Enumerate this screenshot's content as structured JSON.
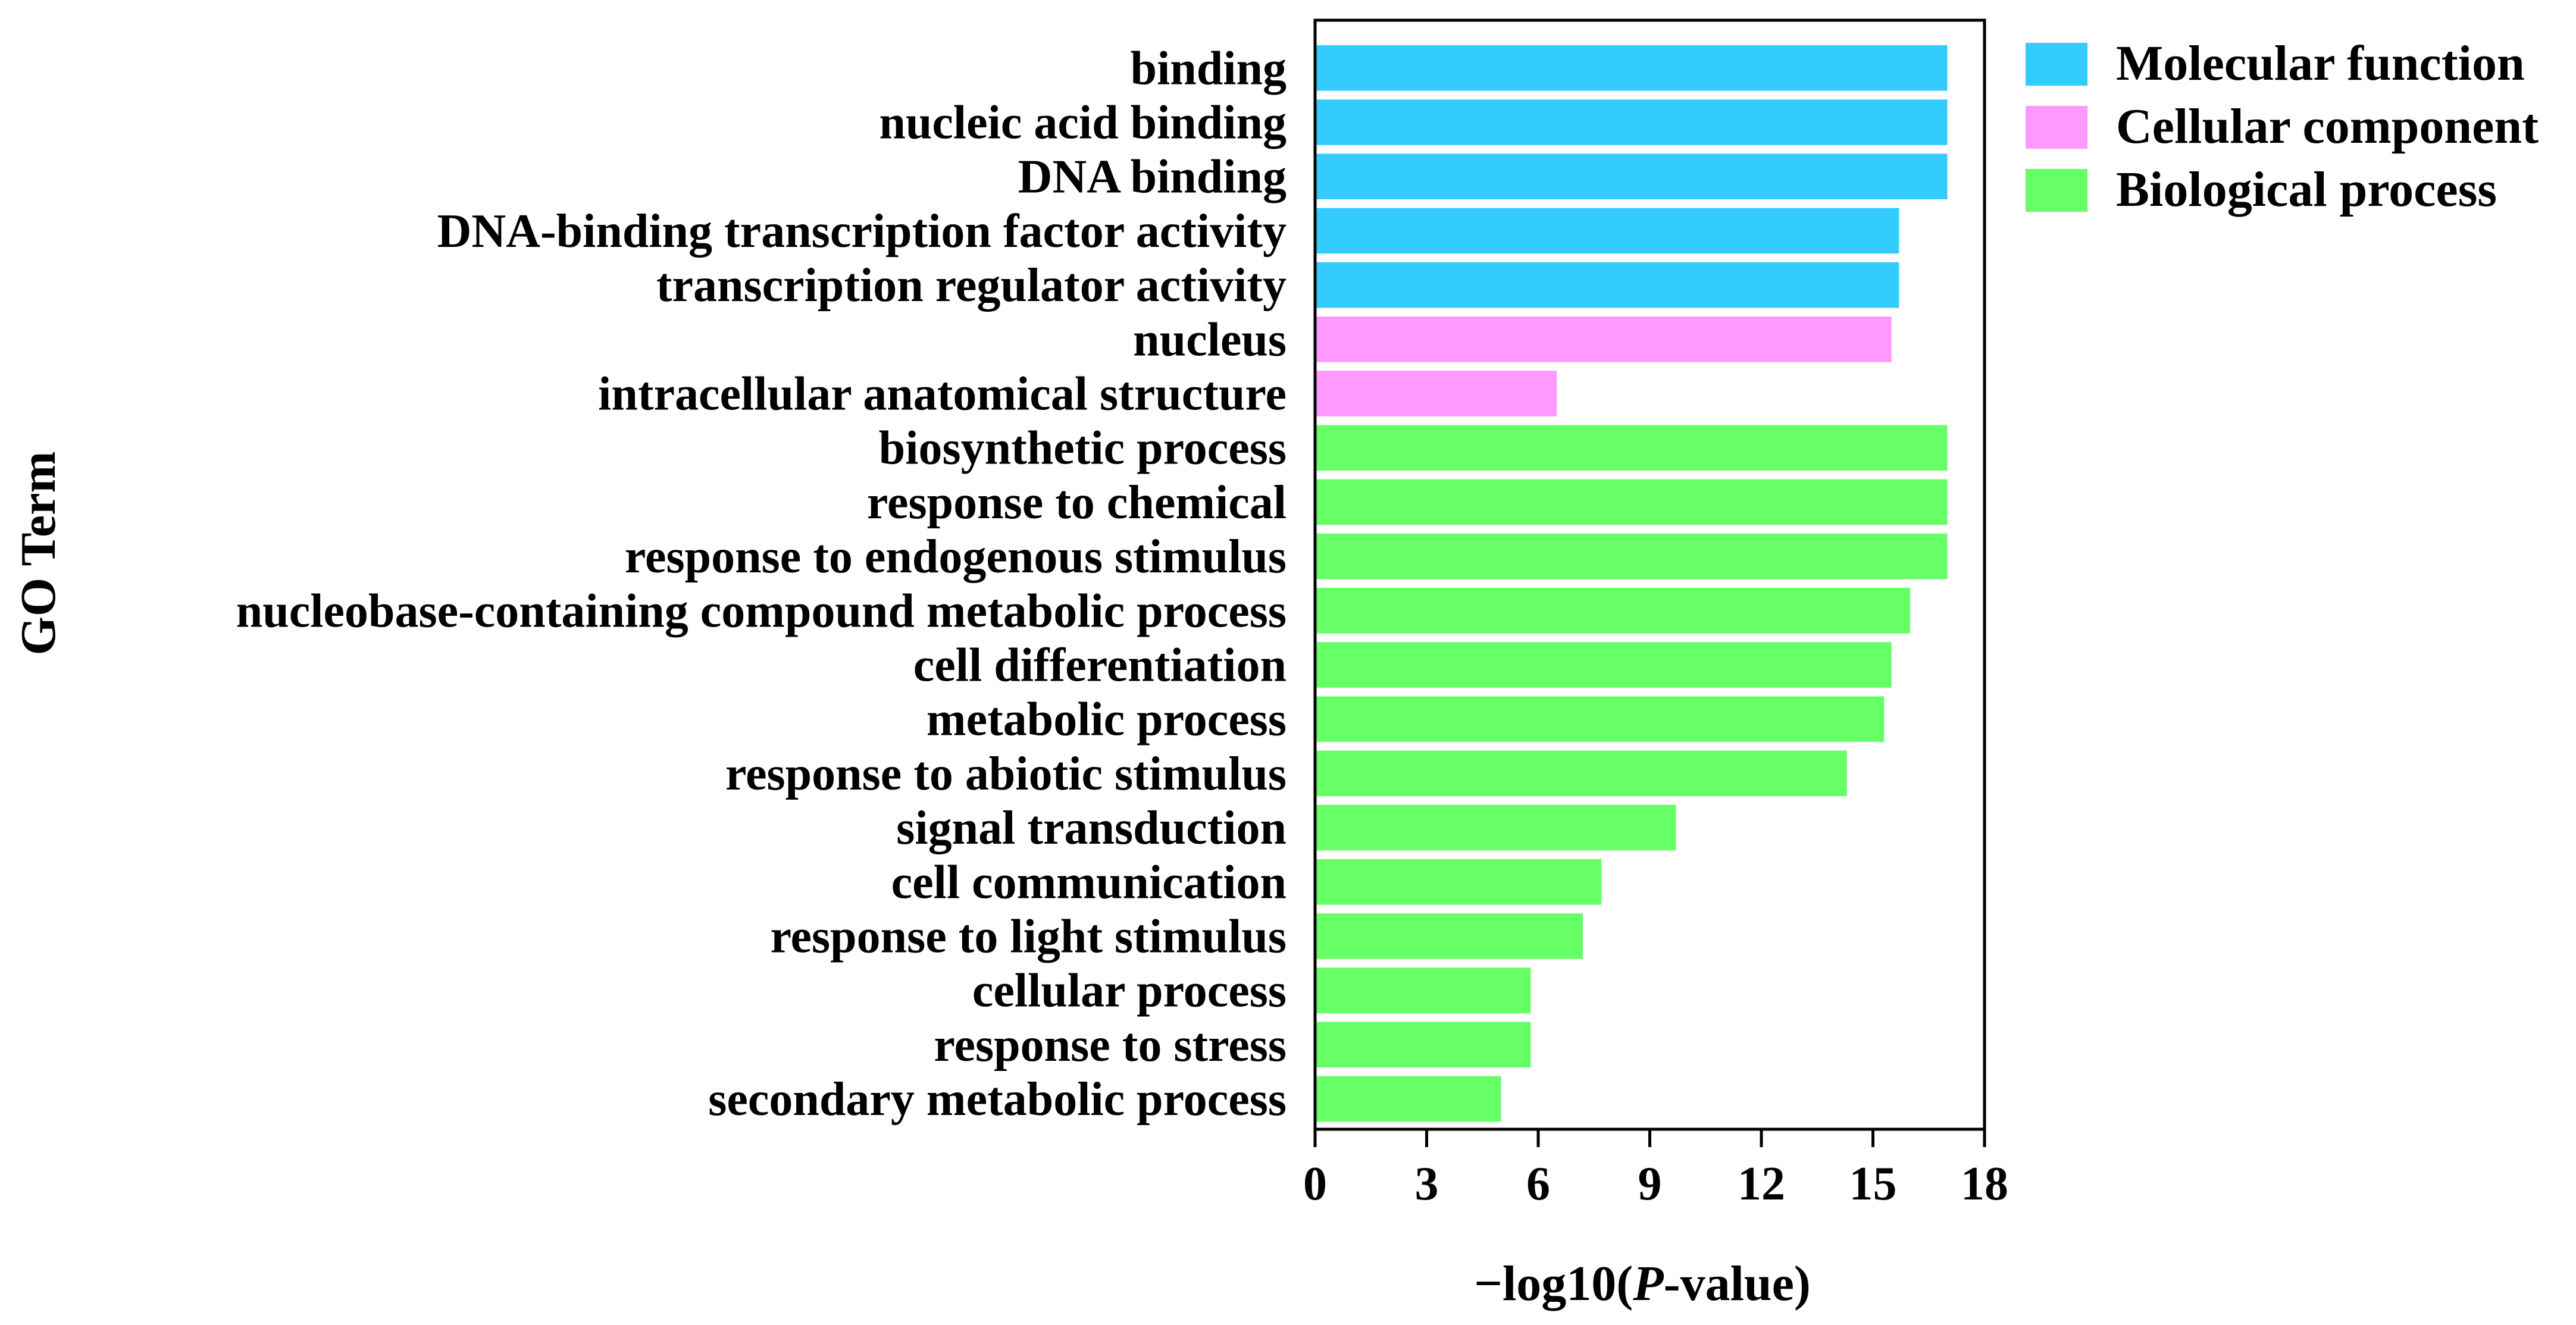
{
  "chart_data": {
    "type": "bar",
    "orientation": "horizontal",
    "title": "",
    "xlabel_prefix": "−log10(",
    "xlabel_italic": "P",
    "xlabel_suffix": "-value)",
    "ylabel": "GO Term",
    "xlim": [
      0,
      18
    ],
    "xticks": [
      "0",
      "3",
      "6",
      "9",
      "12",
      "15",
      "18"
    ],
    "grid": false,
    "legend_position": "top-right",
    "legend": [
      {
        "name": "Molecular function",
        "color": "#33CCFF"
      },
      {
        "name": "Cellular component",
        "color": "#FF99FF"
      },
      {
        "name": "Biological process",
        "color": "#66FF66"
      }
    ],
    "categories": [
      "binding",
      "nucleic acid binding",
      "DNA binding",
      "DNA-binding transcription factor activity",
      "transcription regulator activity",
      "nucleus",
      "intracellular anatomical structure",
      "biosynthetic process",
      "response to chemical",
      "response to endogenous stimulus",
      "nucleobase-containing compound metabolic process",
      "cell differentiation",
      "metabolic process",
      "response to abiotic stimulus",
      "signal transduction",
      "cell communication",
      "response to light stimulus",
      "cellular process",
      "response to stress",
      "secondary metabolic process"
    ],
    "values": [
      17.0,
      17.0,
      17.0,
      15.7,
      15.7,
      15.5,
      6.5,
      17.0,
      17.0,
      17.0,
      16.0,
      15.5,
      15.3,
      14.3,
      9.7,
      7.7,
      7.2,
      5.8,
      5.8,
      5.0
    ],
    "groups": [
      "Molecular function",
      "Molecular function",
      "Molecular function",
      "Molecular function",
      "Molecular function",
      "Cellular component",
      "Cellular component",
      "Biological process",
      "Biological process",
      "Biological process",
      "Biological process",
      "Biological process",
      "Biological process",
      "Biological process",
      "Biological process",
      "Biological process",
      "Biological process",
      "Biological process",
      "Biological process",
      "Biological process"
    ]
  }
}
